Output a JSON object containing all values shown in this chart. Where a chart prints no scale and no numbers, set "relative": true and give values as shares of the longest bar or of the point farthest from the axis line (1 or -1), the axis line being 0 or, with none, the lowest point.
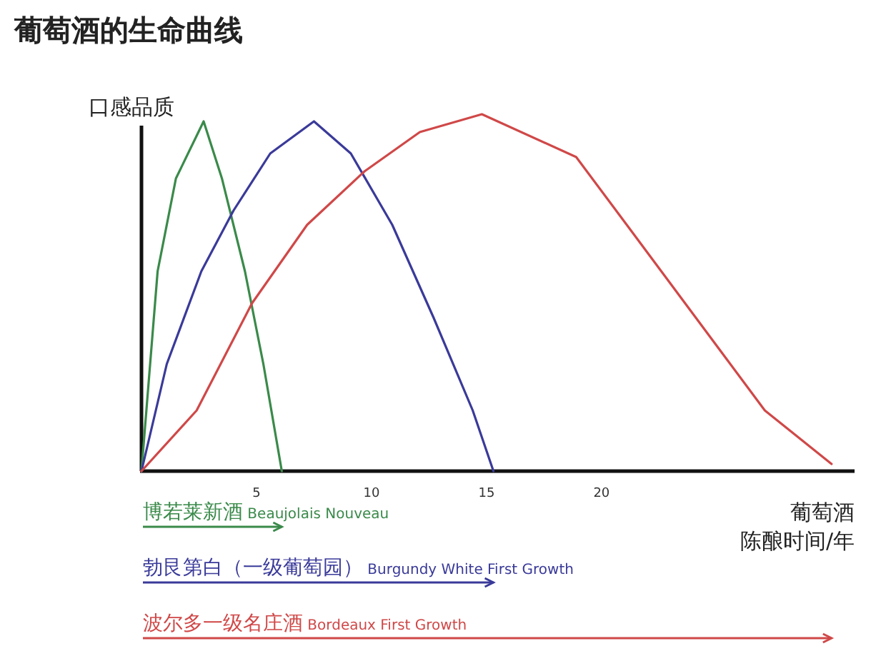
{
  "chart_data": {
    "type": "line",
    "title": "葡萄酒的生命曲线",
    "ylabel": "口感品质",
    "xlabel": "陈酿时间/年",
    "annotations": [
      "葡萄酒"
    ],
    "relative": true,
    "xlim": [
      0,
      31
    ],
    "xticks": [
      5,
      10,
      15,
      20
    ],
    "legend": "bottom",
    "marker": "none",
    "line_style": "solid",
    "series": [
      {
        "name": "博若莱新酒 Beaujolais Nouveau",
        "color": "#3a8a4a",
        "x": [
          0,
          0.7,
          1.5,
          2.7,
          3.5,
          4.5,
          5.3,
          6.1
        ],
        "values": [
          0,
          0.56,
          0.82,
          0.98,
          0.82,
          0.56,
          0.3,
          0
        ]
      },
      {
        "name": "勃艮第白（一级葡萄园） Burgundy White First Growth",
        "color": "#3a3a9a",
        "x": [
          0,
          1.1,
          2.6,
          4.0,
          5.6,
          7.5,
          9.1,
          10.9,
          12.7,
          14.4,
          15.3
        ],
        "values": [
          0,
          0.3,
          0.56,
          0.73,
          0.89,
          0.98,
          0.89,
          0.69,
          0.43,
          0.17,
          0
        ]
      },
      {
        "name": "波尔多一级名庄酒 Bordeaux First Growth",
        "color": "#d04848",
        "x": [
          0,
          2.4,
          4.8,
          7.2,
          9.7,
          12.1,
          14.8,
          18.9,
          21.1,
          24.1,
          27.1,
          30.0
        ],
        "values": [
          0,
          0.17,
          0.47,
          0.69,
          0.84,
          0.95,
          1,
          0.88,
          0.69,
          0.43,
          0.17,
          0.02
        ]
      }
    ]
  }
}
